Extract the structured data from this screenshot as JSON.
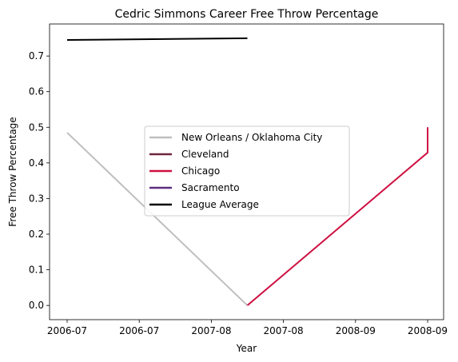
{
  "chart_data": {
    "type": "line",
    "title": "Cedric Simmons Career Free Throw Percentage",
    "xlabel": "Year",
    "ylabel": "Free Throw Percentage",
    "ylim": [
      -0.04,
      0.79
    ],
    "y_ticks": [
      0.0,
      0.1,
      0.2,
      0.3,
      0.4,
      0.5,
      0.6,
      0.7
    ],
    "y_tick_labels": [
      "0.0",
      "0.1",
      "0.2",
      "0.3",
      "0.4",
      "0.5",
      "0.6",
      "0.7"
    ],
    "x_tick_labels": [
      "2006-07",
      "2006-07",
      "2007-08",
      "2007-08",
      "2008-09",
      "2008-09"
    ],
    "grid": false,
    "legend_position": "center",
    "series": [
      {
        "name": "New Orleans / Oklahoma City",
        "color": "#bfbfbf",
        "x": [
          "2006-07",
          "2007-08"
        ],
        "y": [
          0.485,
          0.0
        ]
      },
      {
        "name": "Cleveland",
        "color": "#6f263d",
        "x": [],
        "y": []
      },
      {
        "name": "Chicago",
        "color": "#ce1141",
        "x": [
          "2007-08",
          "2008-09",
          "2008-09"
        ],
        "y": [
          0.0,
          0.429,
          0.5
        ]
      },
      {
        "name": "Sacramento",
        "color": "#5a2d81",
        "x": [],
        "y": []
      },
      {
        "name": "League Average",
        "color": "#000000",
        "x": [
          "2006-07",
          "2007-08"
        ],
        "y": [
          0.745,
          0.75
        ]
      }
    ]
  }
}
